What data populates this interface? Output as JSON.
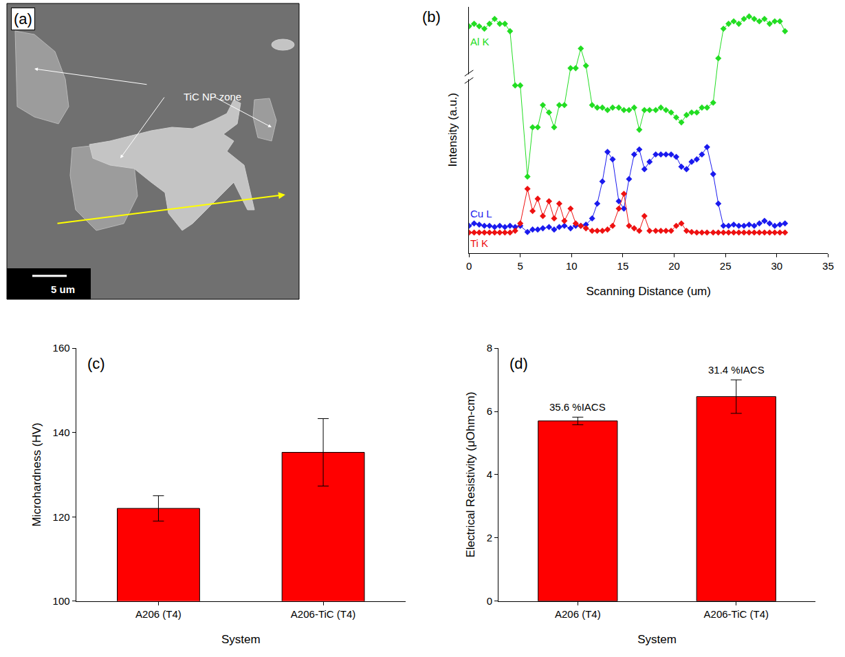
{
  "chart_data": [
    {
      "type": "image",
      "title": "(a)",
      "annotations": [
        "TiC NP zone"
      ],
      "scale_bar": "5 um"
    },
    {
      "type": "line",
      "title": "(b)",
      "x_label": "Scanning Distance (um)",
      "y_label": "Intensity (a.u.)",
      "xlim": [
        0,
        35
      ],
      "xticks": [
        0,
        5,
        10,
        15,
        20,
        25,
        30,
        35
      ],
      "ylim": [
        0,
        100
      ],
      "yticks": [],
      "tick_labels": "x",
      "marker": "diamond",
      "grid": false,
      "x": [
        0,
        0.5,
        1,
        1.5,
        2,
        2.5,
        3,
        3.5,
        4,
        4.5,
        5,
        5.7,
        6.2,
        6.7,
        7.2,
        7.8,
        8.3,
        8.8,
        9.3,
        9.9,
        10.4,
        10.9,
        11.4,
        12,
        12.5,
        13,
        13.5,
        14,
        14.6,
        15.1,
        15.6,
        16.1,
        16.6,
        17.1,
        17.6,
        18.2,
        18.7,
        19.2,
        19.7,
        20.2,
        20.7,
        21.2,
        21.7,
        22.2,
        22.7,
        23.2,
        23.8,
        24.3,
        24.8,
        25.3,
        25.8,
        26.3,
        26.8,
        27.3,
        27.8,
        28.3,
        28.8,
        29.3,
        29.8,
        30.3,
        30.8
      ],
      "series": [
        {
          "name": "Al K",
          "color": "#22dd22",
          "values": [
            92,
            93,
            92,
            91,
            93,
            95,
            93,
            93,
            90,
            68,
            68,
            31,
            51,
            51,
            60,
            57,
            51,
            60,
            60,
            75,
            75,
            83,
            76,
            60,
            59,
            59,
            58,
            59,
            59,
            58,
            58,
            59,
            50,
            58,
            58,
            58,
            59,
            58,
            57,
            55,
            53,
            56,
            57,
            57,
            59,
            59,
            61,
            79,
            91,
            93,
            94,
            93,
            95,
            96,
            95,
            94,
            95,
            93,
            94,
            94,
            90
          ]
        },
        {
          "name": "Cu L",
          "color": "#1a1aee",
          "values": [
            11,
            12,
            11.5,
            11,
            11,
            10.5,
            11,
            10.5,
            11,
            10.5,
            11,
            8.5,
            9.5,
            9.5,
            10,
            10.5,
            9.5,
            10.5,
            11,
            10,
            11,
            11,
            11.5,
            14,
            20,
            29,
            41,
            38,
            21,
            18,
            30,
            40,
            42,
            34,
            37,
            40,
            40,
            40,
            40,
            39,
            35,
            34,
            37,
            38,
            40,
            43,
            32,
            20,
            11,
            11,
            11.5,
            11,
            11,
            11.5,
            11,
            12,
            13,
            12,
            11,
            11.5,
            12
          ]
        },
        {
          "name": "Ti K",
          "color": "#ee1111",
          "values": [
            8.3,
            8.3,
            8.3,
            8.3,
            8.3,
            8.3,
            8.3,
            8.3,
            8.3,
            9,
            12,
            26,
            17,
            22,
            15,
            21,
            14,
            20,
            13,
            18,
            12,
            11,
            10,
            9,
            9,
            9,
            9.5,
            11,
            18,
            24,
            11,
            10,
            9,
            15,
            9,
            9,
            9,
            9,
            9,
            11,
            12,
            9,
            8.5,
            8.3,
            8.3,
            8.3,
            8.3,
            8.3,
            8.3,
            8.3,
            8.3,
            8.3,
            8.3,
            8.3,
            8.3,
            8.3,
            8.3,
            8.3,
            8.3,
            8.3,
            8.3
          ]
        }
      ]
    },
    {
      "type": "bar",
      "title": "(c)",
      "x_label": "System",
      "y_label": "Microhardness (HV)",
      "categories": [
        "A206 (T4)",
        "A206-TiC (T4)"
      ],
      "values": [
        122,
        135.3
      ],
      "errors": [
        3,
        8
      ],
      "color": "#ff0000",
      "ylim": [
        100,
        160
      ],
      "yticks": [
        100,
        120,
        140,
        160
      ],
      "grid": false
    },
    {
      "type": "bar",
      "title": "(d)",
      "x_label": "System",
      "y_label": "Electrical Resistivity (μOhm-cm)",
      "categories": [
        "A206 (T4)",
        "A206-TiC (T4)"
      ],
      "values": [
        5.7,
        6.47
      ],
      "errors": [
        0.12,
        0.53
      ],
      "color": "#ff0000",
      "ylim": [
        0,
        8
      ],
      "yticks": [
        0,
        2,
        4,
        6,
        8
      ],
      "grid": false,
      "annotations": [
        {
          "category": "A206 (T4)",
          "text": "35.6 %IACS"
        },
        {
          "category": "A206-TiC (T4)",
          "text": "31.4 %IACS"
        }
      ]
    }
  ]
}
